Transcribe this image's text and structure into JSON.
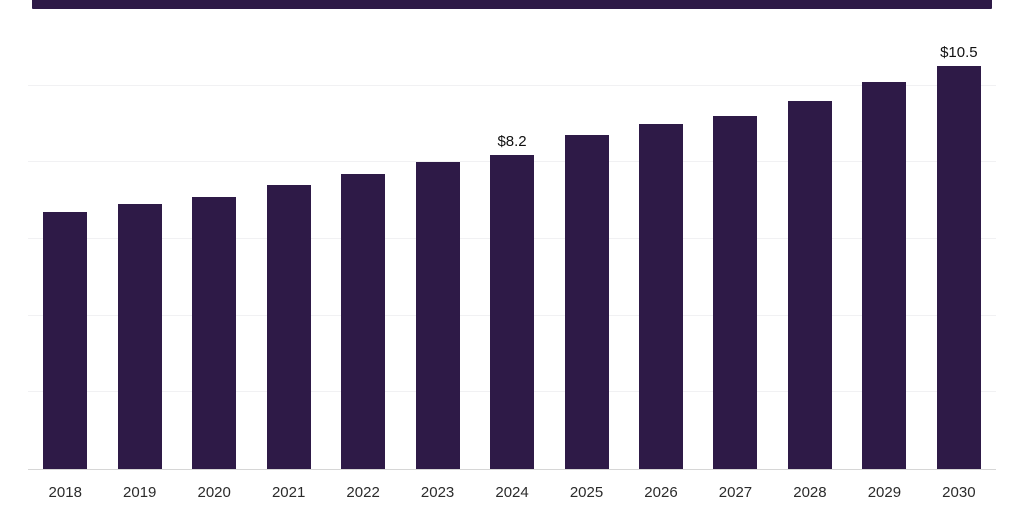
{
  "chart_data": {
    "type": "bar",
    "title": "",
    "xlabel": "",
    "ylabel": "",
    "categories": [
      "2018",
      "2019",
      "2020",
      "2021",
      "2022",
      "2023",
      "2024",
      "2025",
      "2026",
      "2027",
      "2028",
      "2029",
      "2030"
    ],
    "values": [
      6.7,
      6.9,
      7.1,
      7.4,
      7.7,
      8.0,
      8.2,
      8.7,
      9.0,
      9.2,
      9.6,
      10.1,
      10.5
    ],
    "data_labels": [
      {
        "category": "2024",
        "label": "$8.2"
      },
      {
        "category": "2030",
        "label": "$10.5"
      }
    ],
    "ylim": [
      0,
      12
    ],
    "gridline_values": [
      2,
      4,
      6,
      8,
      10
    ],
    "bar_color": "#2e1a47",
    "grid": true,
    "legend_position": "none"
  },
  "decor": {
    "top_strip_color": "#2e1a47"
  }
}
